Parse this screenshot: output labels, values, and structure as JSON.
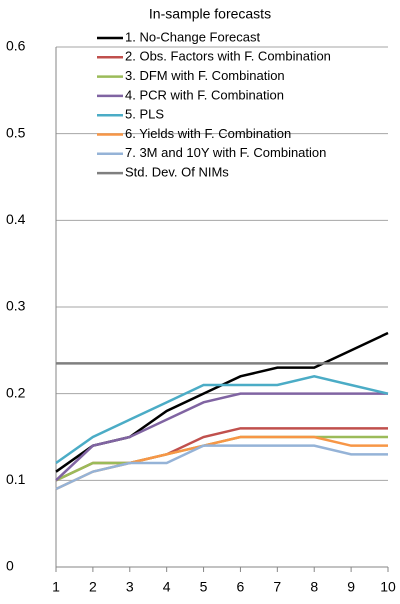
{
  "chart_data": {
    "type": "line",
    "title": "In-sample forecasts",
    "x": [
      1,
      2,
      3,
      4,
      5,
      6,
      7,
      8,
      9,
      10
    ],
    "xlim": [
      1,
      10
    ],
    "xticks": [
      1,
      2,
      3,
      4,
      5,
      6,
      7,
      8,
      9,
      10
    ],
    "ylim": [
      0,
      0.6
    ],
    "yticks": [
      0,
      0.1,
      0.2,
      0.3,
      0.4,
      0.5,
      0.6
    ],
    "grid": true,
    "legend": "upper left",
    "series": [
      {
        "name": "1. No-Change Forecast",
        "color": "#000000",
        "values": [
          0.11,
          0.14,
          0.15,
          0.18,
          0.2,
          0.22,
          0.23,
          0.23,
          0.25,
          0.27
        ]
      },
      {
        "name": "2. Obs. Factors with F. Combination",
        "color": "#c0504d",
        "values": [
          0.1,
          0.12,
          0.12,
          0.13,
          0.15,
          0.16,
          0.16,
          0.16,
          0.16,
          0.16
        ]
      },
      {
        "name": "3. DFM with F. Combination",
        "color": "#9bbb59",
        "values": [
          0.1,
          0.12,
          0.12,
          0.13,
          0.14,
          0.15,
          0.15,
          0.15,
          0.15,
          0.15
        ]
      },
      {
        "name": "4. PCR with F. Combination",
        "color": "#8064a2",
        "values": [
          0.1,
          0.14,
          0.15,
          0.17,
          0.19,
          0.2,
          0.2,
          0.2,
          0.2,
          0.2
        ]
      },
      {
        "name": "5. PLS",
        "color": "#4bacc6",
        "values": [
          0.12,
          0.15,
          0.17,
          0.19,
          0.21,
          0.21,
          0.21,
          0.22,
          0.21,
          0.2
        ]
      },
      {
        "name": "6. Yields with F. Combination",
        "color": "#f79646",
        "values": [
          0.09,
          0.11,
          0.12,
          0.13,
          0.14,
          0.15,
          0.15,
          0.15,
          0.14,
          0.14
        ]
      },
      {
        "name": "7. 3M and 10Y with F. Combination",
        "color": "#95b3d7",
        "values": [
          0.09,
          0.11,
          0.12,
          0.12,
          0.14,
          0.14,
          0.14,
          0.14,
          0.13,
          0.13
        ]
      },
      {
        "name": "Std. Dev. Of NIMs",
        "color": "#7f7f7f",
        "values": [
          0.235,
          0.235,
          0.235,
          0.235,
          0.235,
          0.235,
          0.235,
          0.235,
          0.235,
          0.235
        ]
      }
    ]
  }
}
